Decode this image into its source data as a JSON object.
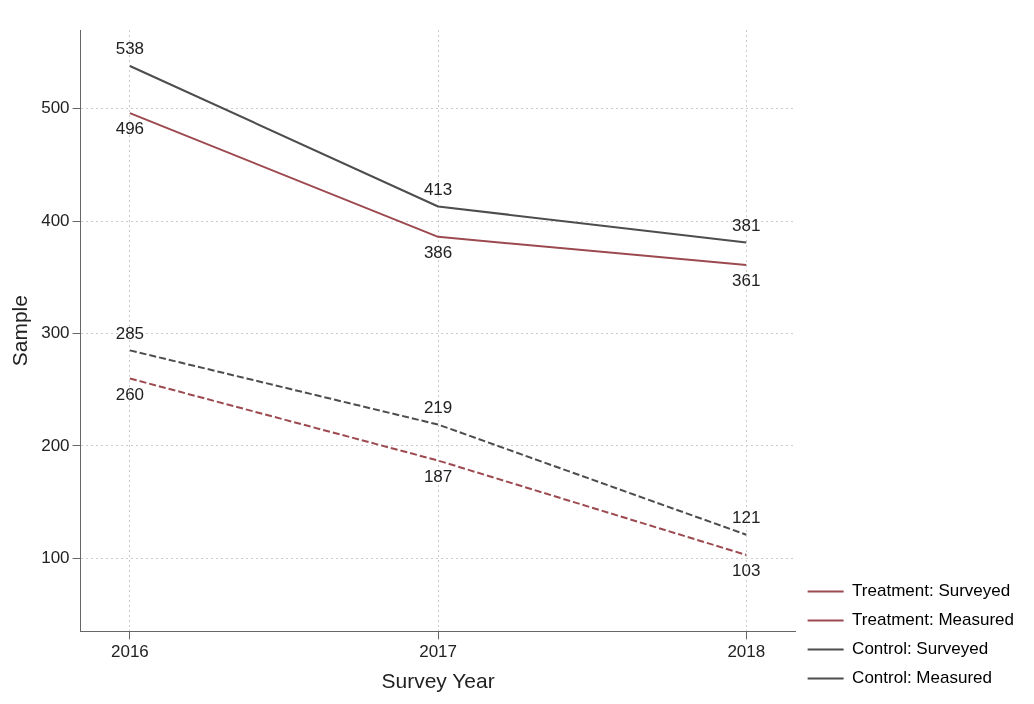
{
  "chart_data": {
    "type": "line",
    "xlabel": "Survey Year",
    "ylabel": "Sample",
    "x": [
      2016,
      2017,
      2018
    ],
    "series": [
      {
        "name": "Treatment: Surveyed",
        "color": "#9c4a50",
        "values": [
          496,
          386,
          361
        ],
        "line_style": "solid"
      },
      {
        "name": "Treatment: Measured",
        "color": "#9c4a50",
        "values": [
          260,
          187,
          103
        ],
        "line_style": "dashed"
      },
      {
        "name": "Control: Surveyed",
        "color": "#4d4d4d",
        "values": [
          538,
          413,
          381
        ],
        "line_style": "solid"
      },
      {
        "name": "Control: Measured",
        "color": "#4d4d4d",
        "values": [
          285,
          219,
          121
        ],
        "line_style": "dashed"
      }
    ],
    "xlim": [
      2015.84,
      2018.16
    ],
    "xticks": [
      2016,
      2017,
      2018
    ],
    "ylim": [
      35,
      570
    ],
    "yticks": [
      100,
      200,
      300,
      400,
      500
    ],
    "grid": true,
    "legend": "right",
    "data_labels": true,
    "marker": "none"
  }
}
